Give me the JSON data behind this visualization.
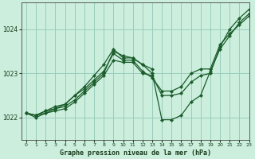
{
  "title": "Graphe pression niveau de la mer (hPa)",
  "bg_color": "#cceedd",
  "grid_color": "#99ccbb",
  "line_color": "#1a5c2a",
  "marker_color": "#1a5c2a",
  "xlim": [
    -0.5,
    23
  ],
  "ylim": [
    1021.5,
    1024.6
  ],
  "yticks": [
    1022,
    1023,
    1024
  ],
  "xticks": [
    0,
    1,
    2,
    3,
    4,
    5,
    6,
    7,
    8,
    9,
    10,
    11,
    12,
    13,
    14,
    15,
    16,
    17,
    18,
    19,
    20,
    21,
    22,
    23
  ],
  "series": [
    {
      "x": [
        0,
        1,
        2,
        3,
        4,
        5,
        6,
        7,
        8,
        9,
        10,
        11,
        12,
        13,
        14,
        15,
        16,
        17,
        18,
        19,
        20,
        21,
        22,
        23
      ],
      "y": [
        1022.1,
        1022.05,
        1022.15,
        1022.2,
        1022.25,
        1022.4,
        1022.6,
        1022.8,
        1023.0,
        1023.5,
        1023.4,
        1023.35,
        1023.2,
        1023.0,
        1021.95,
        1021.95,
        1022.05,
        1022.35,
        1022.5,
        1023.05,
        1023.55,
        1023.85,
        1024.15,
        1024.35
      ]
    },
    {
      "x": [
        0,
        1,
        2,
        3,
        4,
        5,
        6,
        7,
        8,
        9,
        10,
        11,
        12,
        13,
        14,
        15,
        16,
        17,
        18,
        19,
        20,
        21,
        22,
        23
      ],
      "y": [
        1022.1,
        1022.0,
        1022.1,
        1022.2,
        1022.3,
        1022.5,
        1022.65,
        1022.85,
        1023.05,
        1023.45,
        1023.3,
        1023.3,
        1023.05,
        1022.9,
        1022.6,
        1022.6,
        1022.7,
        1023.0,
        1023.1,
        1023.1,
        1023.65,
        1023.9,
        1024.1,
        1024.3
      ]
    },
    {
      "x": [
        0,
        1,
        2,
        3,
        4,
        5,
        6,
        7,
        8,
        9,
        10,
        11,
        12,
        13
      ],
      "y": [
        1022.1,
        1022.05,
        1022.15,
        1022.25,
        1022.3,
        1022.5,
        1022.7,
        1022.95,
        1023.2,
        1023.55,
        1023.35,
        1023.35,
        1023.2,
        1023.1
      ]
    },
    {
      "x": [
        0,
        1,
        2,
        3,
        4,
        5,
        6,
        7,
        8,
        9,
        10,
        11,
        12,
        13,
        14,
        15,
        16,
        17,
        18,
        19,
        20,
        21,
        22,
        23
      ],
      "y": [
        1022.1,
        1022.05,
        1022.1,
        1022.15,
        1022.2,
        1022.35,
        1022.55,
        1022.75,
        1022.95,
        1023.3,
        1023.25,
        1023.25,
        1023.0,
        1022.95,
        1022.5,
        1022.5,
        1022.55,
        1022.8,
        1022.95,
        1023.0,
        1023.6,
        1024.0,
        1024.25,
        1024.45
      ]
    }
  ]
}
